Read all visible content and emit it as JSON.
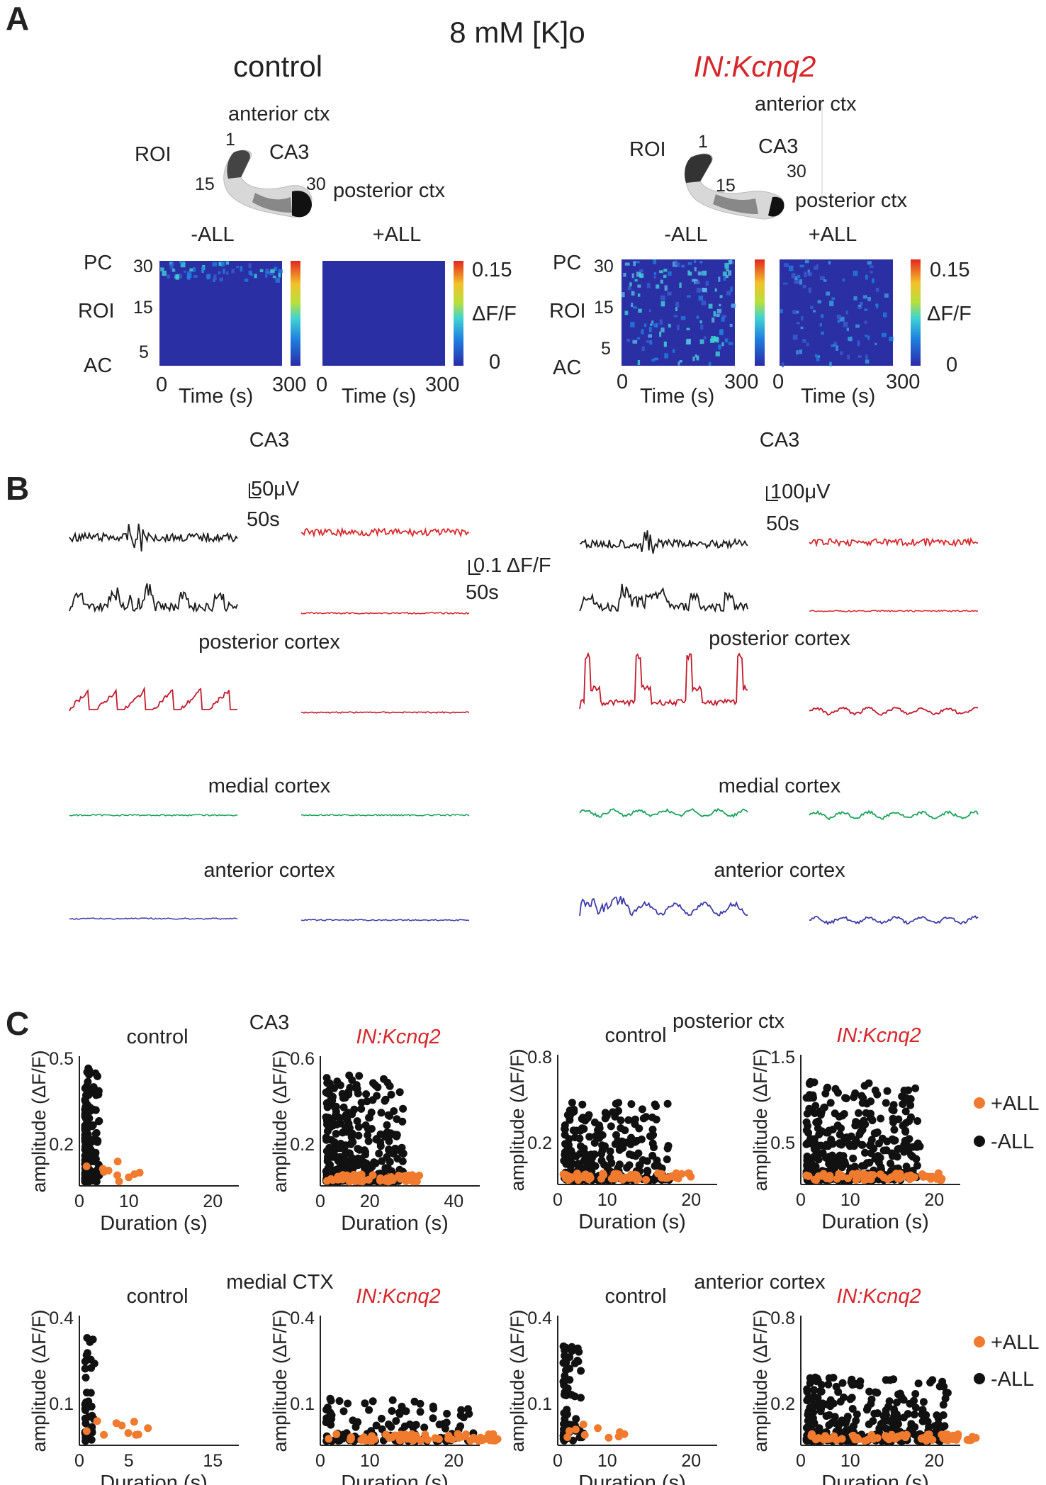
{
  "figure_title": "8 mM [K]o",
  "panels": {
    "a": "A",
    "b": "B",
    "c": "C"
  },
  "panel_a": {
    "conditions": [
      {
        "title": "control",
        "roi_map": {
          "roi": "ROI",
          "anterior": "anterior ctx",
          "ca3": "CA3",
          "posterior": "posterior ctx",
          "n1": "1",
          "n15": "15",
          "n30": "30"
        },
        "heatmaps": [
          {
            "label": "-ALL"
          },
          {
            "label": "+ALL"
          }
        ],
        "y_labels": {
          "pc": "PC",
          "roi": "ROI",
          "ac": "AC",
          "t30": "30",
          "t15": "15",
          "t5": "5"
        },
        "x_label": "Time (s)",
        "x0": "0",
        "x1": "300",
        "colorbar": {
          "max": "0.15",
          "label": "ΔF/F",
          "min": "0"
        },
        "region_label": "CA3"
      },
      {
        "title": "IN:Kcnq2",
        "roi_map": {
          "roi": "ROI",
          "anterior": "anterior ctx",
          "ca3": "CA3",
          "posterior": "posterior ctx",
          "n1": "1",
          "n15": "15",
          "n30": "30"
        },
        "heatmaps": [
          {
            "label": "-ALL"
          },
          {
            "label": "+ALL"
          }
        ],
        "y_labels": {
          "pc": "PC",
          "roi": "ROI",
          "ac": "AC",
          "t30": "30",
          "t15": "15",
          "t5": "5"
        },
        "x_label": "Time (s)",
        "x0": "0",
        "x1": "300",
        "colorbar": {
          "max": "0.15",
          "label": "ΔF/F",
          "min": "0"
        },
        "region_label": "CA3"
      }
    ]
  },
  "panel_b": {
    "scale_bars": {
      "control_voltage": "50μV",
      "control_time": "50s",
      "kcnq2_voltage": "100μV",
      "kcnq2_time": "50s",
      "dff_label": "0.1 ΔF/F",
      "dff_time": "50s"
    },
    "region_labels": {
      "posterior": "posterior cortex",
      "medial": "medial cortex",
      "anterior": "anterior cortex"
    },
    "trace_colors": {
      "lfp_minus": "#1a1a1a",
      "lfp_plus": "#d9282b",
      "posterior": "#c21a2c",
      "medial": "#1aa35a",
      "anterior": "#3b3ba8"
    }
  },
  "panel_c": {
    "groups": [
      {
        "region": "CA3",
        "plots": [
          {
            "title": "control",
            "ylabel": "amplitude (ΔF/F)",
            "xlabel": "Duration (s)",
            "xticks": [
              "0",
              "10",
              "20"
            ],
            "yticks": [
              "0.5",
              "0.2"
            ]
          },
          {
            "title": "IN:Kcnq2",
            "ylabel": "amplitude (ΔF/F)",
            "xlabel": "Duration (s)",
            "xticks": [
              "0",
              "20",
              "40"
            ],
            "yticks": [
              "0.6",
              "0.2"
            ]
          }
        ]
      },
      {
        "region": "posterior ctx",
        "plots": [
          {
            "title": "control",
            "ylabel": "amplitude (ΔF/F)",
            "xlabel": "Duration (s)",
            "xticks": [
              "0",
              "10",
              "20"
            ],
            "yticks": [
              "0.8",
              "0.2"
            ]
          },
          {
            "title": "IN:Kcnq2",
            "ylabel": "amplitude (ΔF/F)",
            "xlabel": "Duration (s)",
            "xticks": [
              "0",
              "10",
              "20"
            ],
            "yticks": [
              "1.5",
              "0.5"
            ]
          }
        ]
      },
      {
        "region": "medial CTX",
        "plots": [
          {
            "title": "control",
            "ylabel": "amplitude (ΔF/F)",
            "xlabel": "Duration (s)",
            "xticks": [
              "0",
              "5",
              "15"
            ],
            "yticks": [
              "0.4",
              "0.1"
            ]
          },
          {
            "title": "IN:Kcnq2",
            "ylabel": "amplitude (ΔF/F)",
            "xlabel": "Duration (s)",
            "xticks": [
              "0",
              "10",
              "20"
            ],
            "yticks": [
              "0.4",
              "0.1"
            ]
          }
        ]
      },
      {
        "region": "anterior cortex",
        "plots": [
          {
            "title": "control",
            "ylabel": "amplitude (ΔF/F)",
            "xlabel": "Duration (s)",
            "xticks": [
              "0",
              "10",
              "20"
            ],
            "yticks": [
              "0.4",
              "0.1"
            ]
          },
          {
            "title": "IN:Kcnq2",
            "ylabel": "amplitude (ΔF/F)",
            "xlabel": "Duration (s)",
            "xticks": [
              "0",
              "10",
              "20"
            ],
            "yticks": [
              "0.8",
              "0.2"
            ]
          }
        ]
      }
    ],
    "legend": [
      {
        "label": "+ALL",
        "color": "#f07a2e"
      },
      {
        "label": "-ALL",
        "color": "#111111"
      }
    ],
    "legend_bottom": [
      {
        "label": "+ALL",
        "color": "#f07a2e"
      },
      {
        "label": "-ALL",
        "color": "#111111"
      }
    ]
  }
}
